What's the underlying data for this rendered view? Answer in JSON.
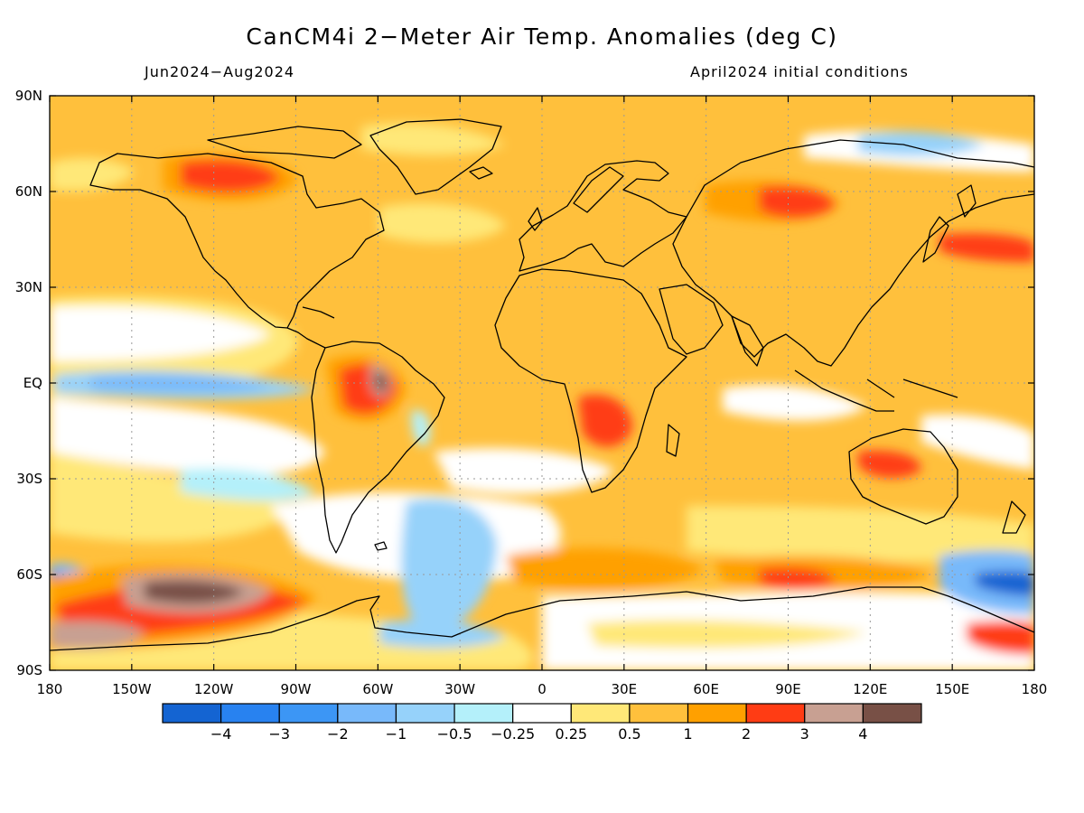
{
  "title": "CanCM4i 2−Meter Air Temp. Anomalies (deg C)",
  "subtitle_left": "Jun2024−Aug2024",
  "subtitle_right": "April2024 initial conditions",
  "lat_ticks": [
    {
      "value": 90,
      "label": "90N"
    },
    {
      "value": 60,
      "label": "60N"
    },
    {
      "value": 30,
      "label": "30N"
    },
    {
      "value": 0,
      "label": "EQ"
    },
    {
      "value": -30,
      "label": "30S"
    },
    {
      "value": -60,
      "label": "60S"
    },
    {
      "value": -90,
      "label": "90S"
    }
  ],
  "lon_ticks": [
    {
      "value": -180,
      "label": "180"
    },
    {
      "value": -150,
      "label": "150W"
    },
    {
      "value": -120,
      "label": "120W"
    },
    {
      "value": -90,
      "label": "90W"
    },
    {
      "value": -60,
      "label": "60W"
    },
    {
      "value": -30,
      "label": "30W"
    },
    {
      "value": 0,
      "label": "0"
    },
    {
      "value": 30,
      "label": "30E"
    },
    {
      "value": 60,
      "label": "60E"
    },
    {
      "value": 90,
      "label": "90E"
    },
    {
      "value": 120,
      "label": "120E"
    },
    {
      "value": 150,
      "label": "150E"
    },
    {
      "value": 180,
      "label": "180"
    }
  ],
  "colorbar": {
    "colors": [
      "#1464d2",
      "#2882f0",
      "#3c96f5",
      "#78b9fa",
      "#96d2fa",
      "#b4f0fa",
      "#ffffff",
      "#ffe878",
      "#ffc03c",
      "#ffa000",
      "#ff3c14",
      "#c8a092",
      "#785046"
    ],
    "labels": [
      "−4",
      "−3",
      "−2",
      "−1",
      "−0.5",
      "−0.25",
      "0.25",
      "0.5",
      "1",
      "2",
      "3",
      "4"
    ]
  },
  "colors": {
    "land_outline": "#000000",
    "background": "#ffffff"
  }
}
